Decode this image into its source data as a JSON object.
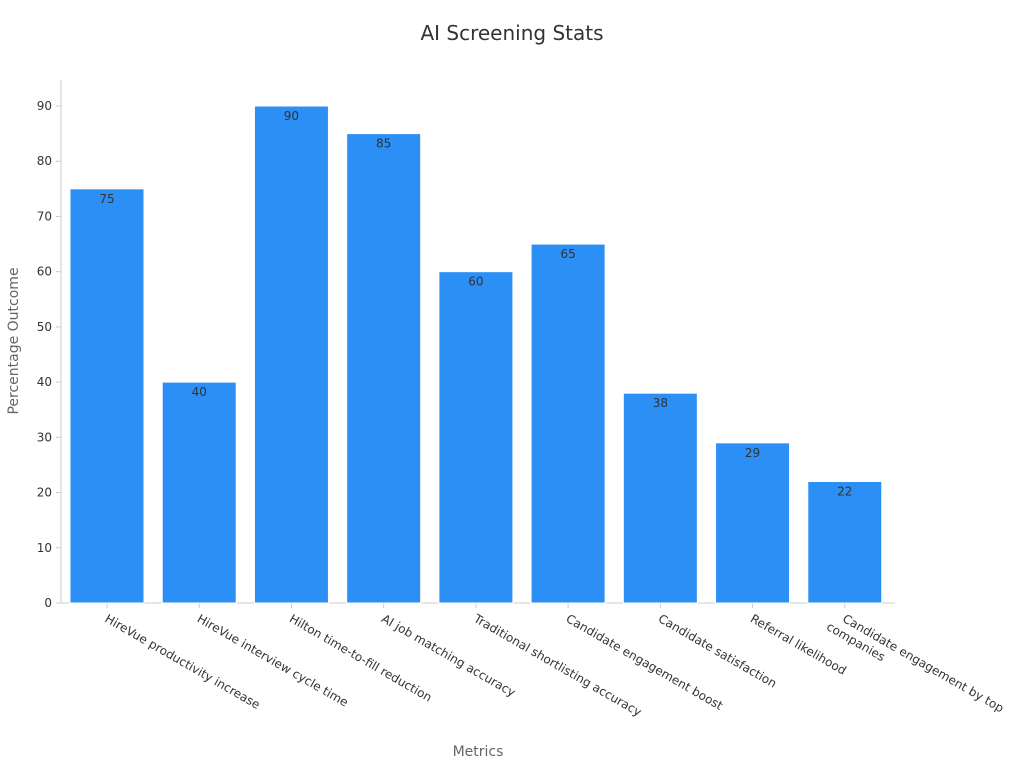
{
  "chart_data": {
    "type": "bar",
    "title": "AI Screening Stats",
    "xlabel": "Metrics",
    "ylabel": "Percentage Outcome",
    "ylim": [
      0,
      95
    ],
    "yticks": [
      0,
      10,
      20,
      30,
      40,
      50,
      60,
      70,
      80,
      90
    ],
    "grid": false,
    "categories": [
      [
        "HireVue productivity increase"
      ],
      [
        "HireVue interview cycle time"
      ],
      [
        "Hilton time-to-fill reduction"
      ],
      [
        "AI job matching accuracy"
      ],
      [
        "Traditional shortlisting accuracy"
      ],
      [
        "Candidate engagement boost"
      ],
      [
        "Candidate satisfaction"
      ],
      [
        "Referral likelihood"
      ],
      [
        "Candidate engagement by top",
        "companies"
      ]
    ],
    "values": [
      75,
      40,
      90,
      85,
      60,
      65,
      38,
      29,
      22
    ],
    "bar_color": "#2b8ff5",
    "data_labels": true
  }
}
